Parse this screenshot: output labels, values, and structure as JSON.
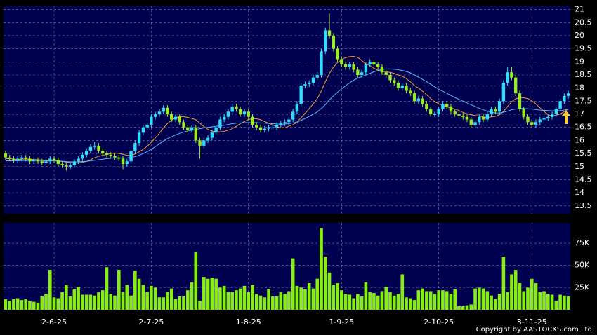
{
  "chart_data": [
    {
      "type": "candlestick",
      "ylim": [
        13.2,
        21.15
      ],
      "yticks": [
        13.5,
        14,
        14.5,
        15,
        15.5,
        16,
        16.5,
        17,
        17.5,
        18,
        18.5,
        19,
        19.5,
        20,
        20.5,
        21
      ],
      "up_color": "#33ddff",
      "down_color": "#99ee22",
      "grid": true,
      "open": [
        15.5,
        15.35,
        15.3,
        15.25,
        15.3,
        15.35,
        15.3,
        15.2,
        15.25,
        15.2,
        15.15,
        15.2,
        15.3,
        15.25,
        15.1,
        15.05,
        15.0,
        15.05,
        15.2,
        15.3,
        15.45,
        15.6,
        15.75,
        15.8,
        15.6,
        15.5,
        15.45,
        15.4,
        15.35,
        15.3,
        15.1,
        15.2,
        15.6,
        15.9,
        16.3,
        16.5,
        16.6,
        16.9,
        17.0,
        17.1,
        17.25,
        17.0,
        16.8,
        16.9,
        16.7,
        16.5,
        16.4,
        16.5,
        16.0,
        15.8,
        16.0,
        16.1,
        16.3,
        16.5,
        16.8,
        16.9,
        17.1,
        17.3,
        17.2,
        17.0,
        17.1,
        16.9,
        16.6,
        16.5,
        16.4,
        16.45,
        16.5,
        16.5,
        16.6,
        16.65,
        16.7,
        16.8,
        17.1,
        17.4,
        18.1,
        18.15,
        18.2,
        18.4,
        18.5,
        19.4,
        20.2,
        20.0,
        19.5,
        19.1,
        18.9,
        18.8,
        18.9,
        18.7,
        18.5,
        18.6,
        18.9,
        19.0,
        18.9,
        18.8,
        18.6,
        18.5,
        18.3,
        18.2,
        18.0,
        18.1,
        17.9,
        17.8,
        17.5,
        17.6,
        17.4,
        17.2,
        17.0,
        17.0,
        17.2,
        17.4,
        17.3,
        17.1,
        17.0,
        16.95,
        16.9,
        16.8,
        16.6,
        16.7,
        16.9,
        16.8,
        17.0,
        17.2,
        17.1,
        17.5,
        18.2,
        18.6,
        18.4,
        17.8,
        17.2,
        16.9,
        16.7,
        16.6,
        16.7,
        16.8,
        16.85,
        16.9,
        17.0,
        17.2,
        17.5,
        17.7
      ],
      "high": [
        15.6,
        15.45,
        15.4,
        15.4,
        15.45,
        15.45,
        15.4,
        15.35,
        15.35,
        15.3,
        15.3,
        15.4,
        15.4,
        15.35,
        15.2,
        15.15,
        15.15,
        15.3,
        15.4,
        15.55,
        15.7,
        15.85,
        15.95,
        15.9,
        15.7,
        15.6,
        15.55,
        15.5,
        15.45,
        15.4,
        15.3,
        15.7,
        16.0,
        16.4,
        16.6,
        16.7,
        17.0,
        17.1,
        17.2,
        17.35,
        17.35,
        17.1,
        17.0,
        17.0,
        16.8,
        16.6,
        16.6,
        16.6,
        16.1,
        16.1,
        16.2,
        16.4,
        16.6,
        16.9,
        17.0,
        17.2,
        17.4,
        17.4,
        17.3,
        17.2,
        17.2,
        17.0,
        16.7,
        16.6,
        16.55,
        16.6,
        16.6,
        16.7,
        16.75,
        16.8,
        16.9,
        17.2,
        17.5,
        18.2,
        18.25,
        18.3,
        18.5,
        18.6,
        19.5,
        20.3,
        20.85,
        20.1,
        19.6,
        19.2,
        19.0,
        19.0,
        19.0,
        18.8,
        18.7,
        19.0,
        19.1,
        19.1,
        19.0,
        18.9,
        18.7,
        18.6,
        18.4,
        18.3,
        18.2,
        18.2,
        18.0,
        17.9,
        17.7,
        17.7,
        17.5,
        17.3,
        17.1,
        17.3,
        17.5,
        17.5,
        17.4,
        17.2,
        17.1,
        17.05,
        17.0,
        16.9,
        16.8,
        17.0,
        17.0,
        17.1,
        17.3,
        17.3,
        17.6,
        18.3,
        18.8,
        18.8,
        18.5,
        17.9,
        17.3,
        17.0,
        16.8,
        16.8,
        16.9,
        16.95,
        17.0,
        17.1,
        17.3,
        17.6,
        17.8,
        17.9
      ],
      "low": [
        15.25,
        15.2,
        15.15,
        15.15,
        15.2,
        15.2,
        15.1,
        15.1,
        15.1,
        15.05,
        15.05,
        15.1,
        15.15,
        15.0,
        14.95,
        14.85,
        14.9,
        14.95,
        15.1,
        15.2,
        15.35,
        15.5,
        15.65,
        15.5,
        15.4,
        15.35,
        15.3,
        15.25,
        15.2,
        14.9,
        15.0,
        15.1,
        15.5,
        15.8,
        16.2,
        16.4,
        16.5,
        16.8,
        16.9,
        17.0,
        16.9,
        16.7,
        16.7,
        16.6,
        16.4,
        16.3,
        16.3,
        15.9,
        15.3,
        15.7,
        15.9,
        16.0,
        16.2,
        16.4,
        16.7,
        16.8,
        17.0,
        17.1,
        16.9,
        16.9,
        16.8,
        16.5,
        16.4,
        16.3,
        16.3,
        16.35,
        16.4,
        16.4,
        16.5,
        16.55,
        16.6,
        16.7,
        17.0,
        17.3,
        18.0,
        18.05,
        18.1,
        18.3,
        18.4,
        19.3,
        19.9,
        19.4,
        19.0,
        18.8,
        18.7,
        18.7,
        18.6,
        18.4,
        18.4,
        18.5,
        18.8,
        18.8,
        18.7,
        18.5,
        18.4,
        18.2,
        18.1,
        17.9,
        17.9,
        17.8,
        17.7,
        17.4,
        17.4,
        17.3,
        17.1,
        16.9,
        16.9,
        16.9,
        17.1,
        17.2,
        17.0,
        16.9,
        16.85,
        16.8,
        16.7,
        16.5,
        16.5,
        16.6,
        16.7,
        16.7,
        16.9,
        17.0,
        17.0,
        17.4,
        18.1,
        18.3,
        17.7,
        17.1,
        16.8,
        16.6,
        16.5,
        16.5,
        16.6,
        16.7,
        16.75,
        16.8,
        16.9,
        17.1,
        17.4,
        17.6
      ],
      "close": [
        15.35,
        15.3,
        15.25,
        15.3,
        15.35,
        15.3,
        15.2,
        15.25,
        15.2,
        15.15,
        15.2,
        15.3,
        15.25,
        15.1,
        15.05,
        15.0,
        15.05,
        15.2,
        15.3,
        15.45,
        15.6,
        15.75,
        15.8,
        15.6,
        15.5,
        15.45,
        15.4,
        15.35,
        15.3,
        15.1,
        15.2,
        15.6,
        15.9,
        16.3,
        16.5,
        16.6,
        16.9,
        17.0,
        17.1,
        17.25,
        17.0,
        16.8,
        16.9,
        16.7,
        16.5,
        16.4,
        16.5,
        16.0,
        15.8,
        16.0,
        16.1,
        16.3,
        16.5,
        16.8,
        16.9,
        17.1,
        17.3,
        17.2,
        17.0,
        17.1,
        16.9,
        16.6,
        16.5,
        16.4,
        16.45,
        16.5,
        16.5,
        16.6,
        16.65,
        16.7,
        16.8,
        17.1,
        17.4,
        18.1,
        18.15,
        18.2,
        18.4,
        18.5,
        19.4,
        20.2,
        20.0,
        19.5,
        19.1,
        18.9,
        18.8,
        18.9,
        18.7,
        18.5,
        18.6,
        18.9,
        19.0,
        18.9,
        18.8,
        18.6,
        18.5,
        18.3,
        18.2,
        18.0,
        18.1,
        17.9,
        17.8,
        17.5,
        17.6,
        17.4,
        17.2,
        17.0,
        17.0,
        17.2,
        17.4,
        17.3,
        17.1,
        17.0,
        16.95,
        16.9,
        16.8,
        16.6,
        16.7,
        16.9,
        16.8,
        17.0,
        17.2,
        17.1,
        17.5,
        18.2,
        18.6,
        18.4,
        17.8,
        17.2,
        16.9,
        16.7,
        16.6,
        16.7,
        16.8,
        16.85,
        16.9,
        17.0,
        17.2,
        17.5,
        17.7,
        17.8
      ],
      "lines": [
        {
          "color": "#ff9933",
          "values": [
            15.3,
            15.3,
            15.28,
            15.27,
            15.28,
            15.29,
            15.28,
            15.27,
            15.26,
            15.25,
            15.24,
            15.24,
            15.24,
            15.22,
            15.2,
            15.17,
            15.15,
            15.14,
            15.14,
            15.16,
            15.2,
            15.26,
            15.34,
            15.39,
            15.43,
            15.46,
            15.5,
            15.52,
            15.5,
            15.47,
            15.43,
            15.43,
            15.48,
            15.56,
            15.66,
            15.78,
            15.93,
            16.1,
            16.28,
            16.48,
            16.65,
            16.77,
            16.87,
            16.91,
            16.91,
            16.88,
            16.84,
            16.79,
            16.66,
            16.53,
            16.42,
            16.36,
            16.33,
            16.33,
            16.35,
            16.39,
            16.45,
            16.54,
            16.64,
            16.72,
            16.8,
            16.83,
            16.83,
            16.79,
            16.72,
            16.66,
            16.59,
            16.52,
            16.48,
            16.48,
            16.55,
            16.6,
            16.7,
            16.87,
            17.04,
            17.21,
            17.4,
            17.6,
            17.89,
            18.24,
            18.56,
            18.8,
            18.97,
            19.09,
            19.16,
            19.2,
            19.21,
            19.17,
            19.05,
            18.92,
            18.86,
            18.76,
            18.68,
            18.65,
            18.62,
            18.6,
            18.56,
            18.5,
            18.45,
            18.36,
            18.24,
            18.1,
            18.0,
            17.88,
            17.75,
            17.6,
            17.48,
            17.4,
            17.34,
            17.28,
            17.24,
            17.2,
            17.14,
            17.07,
            17.02,
            16.98,
            16.95,
            16.94,
            16.89,
            16.88,
            16.9,
            16.92,
            16.98,
            17.11,
            17.3,
            17.48,
            17.59,
            17.64,
            17.63,
            17.6,
            17.51,
            17.4,
            17.25,
            17.11,
            16.98,
            16.93,
            16.97,
            17.01,
            17.1,
            17.2
          ]
        },
        {
          "color": "#55bbff",
          "values": [
            15.22,
            15.22,
            15.22,
            15.22,
            15.23,
            15.23,
            15.23,
            15.23,
            15.23,
            15.23,
            15.22,
            15.22,
            15.22,
            15.21,
            15.2,
            15.19,
            15.18,
            15.18,
            15.18,
            15.19,
            15.2,
            15.22,
            15.24,
            15.26,
            15.28,
            15.3,
            15.32,
            15.33,
            15.33,
            15.32,
            15.33,
            15.35,
            15.38,
            15.43,
            15.5,
            15.57,
            15.66,
            15.76,
            15.87,
            15.98,
            16.07,
            16.14,
            16.21,
            16.27,
            16.32,
            16.36,
            16.39,
            16.42,
            16.45,
            16.48,
            16.5,
            16.52,
            16.54,
            16.56,
            16.58,
            16.61,
            16.64,
            16.66,
            16.67,
            16.68,
            16.68,
            16.68,
            16.68,
            16.67,
            16.66,
            16.65,
            16.64,
            16.63,
            16.62,
            16.63,
            16.64,
            16.67,
            16.7,
            16.77,
            16.84,
            16.92,
            17.0,
            17.09,
            17.22,
            17.37,
            17.55,
            17.7,
            17.84,
            17.97,
            18.09,
            18.2,
            18.3,
            18.38,
            18.44,
            18.5,
            18.56,
            18.62,
            18.67,
            18.71,
            18.73,
            18.73,
            18.72,
            18.7,
            18.67,
            18.63,
            18.58,
            18.5,
            18.42,
            18.33,
            18.24,
            18.15,
            18.05,
            17.96,
            17.88,
            17.8,
            17.72,
            17.64,
            17.57,
            17.5,
            17.43,
            17.36,
            17.3,
            17.23,
            17.17,
            17.12,
            17.08,
            17.05,
            17.05,
            17.08,
            17.12,
            17.17,
            17.2,
            17.22,
            17.22,
            17.21,
            17.2,
            17.18,
            17.16,
            17.15,
            17.14,
            17.13,
            17.13,
            17.14,
            17.16,
            17.2
          ]
        }
      ]
    },
    {
      "type": "bar",
      "color": "#88ee11",
      "grid": true,
      "ylim": [
        0,
        98000
      ],
      "yticks": [
        {
          "value": 25000,
          "label": "25K"
        },
        {
          "value": 50000,
          "label": "50K"
        },
        {
          "value": 75000,
          "label": "75K"
        }
      ],
      "categories": [
        null,
        null,
        null,
        null,
        null,
        null,
        null,
        null,
        null,
        null,
        null,
        null,
        "2-6-25",
        null,
        null,
        null,
        null,
        null,
        null,
        null,
        null,
        null,
        null,
        null,
        null,
        null,
        null,
        null,
        null,
        null,
        null,
        null,
        null,
        null,
        null,
        null,
        "2-7-25",
        null,
        null,
        null,
        null,
        null,
        null,
        null,
        null,
        null,
        null,
        null,
        null,
        null,
        null,
        null,
        null,
        null,
        null,
        null,
        null,
        null,
        null,
        null,
        "1-8-25",
        null,
        null,
        null,
        null,
        null,
        null,
        null,
        null,
        null,
        null,
        null,
        null,
        null,
        null,
        null,
        null,
        null,
        null,
        null,
        null,
        null,
        null,
        "1-9-25",
        null,
        null,
        null,
        null,
        null,
        null,
        null,
        null,
        null,
        null,
        null,
        null,
        null,
        null,
        null,
        null,
        null,
        null,
        null,
        null,
        null,
        null,
        null,
        "2-10-25",
        null,
        null,
        null,
        null,
        null,
        null,
        null,
        null,
        null,
        null,
        null,
        null,
        null,
        null,
        null,
        null,
        null,
        null,
        null,
        null,
        null,
        null,
        "3-11-25",
        null,
        null,
        null,
        null,
        null,
        null,
        null,
        null,
        null
      ],
      "values": [
        12000,
        10000,
        12000,
        13000,
        11000,
        12000,
        10000,
        9000,
        8000,
        15000,
        18000,
        45000,
        14000,
        13000,
        20000,
        28000,
        15000,
        23000,
        26000,
        17000,
        17000,
        17000,
        16000,
        20000,
        22000,
        48000,
        18000,
        16000,
        45000,
        20000,
        28000,
        16000,
        44000,
        35000,
        28000,
        20000,
        27000,
        25000,
        14000,
        14000,
        20000,
        24000,
        12000,
        15000,
        15000,
        22000,
        31000,
        65000,
        10000,
        37000,
        35000,
        36000,
        35000,
        25000,
        27000,
        20000,
        20000,
        22000,
        24000,
        27000,
        20000,
        28000,
        18000,
        16000,
        14000,
        23000,
        15000,
        15000,
        20000,
        18000,
        21000,
        58000,
        27000,
        25000,
        23000,
        30000,
        24000,
        35000,
        92000,
        60000,
        42000,
        28000,
        30000,
        22000,
        18000,
        17000,
        13000,
        18000,
        15000,
        31000,
        20000,
        19000,
        16000,
        21000,
        26000,
        20000,
        16000,
        18000,
        40000,
        14000,
        13000,
        11000,
        22000,
        24000,
        21000,
        21000,
        18000,
        22000,
        22000,
        21000,
        18000,
        23000,
        4000,
        4000,
        5000,
        6000,
        24000,
        25000,
        24000,
        21000,
        16000,
        12000,
        18000,
        60000,
        20000,
        40000,
        45000,
        30000,
        21000,
        25000,
        35000,
        30000,
        20000,
        21000,
        18000,
        17000,
        10000,
        17000,
        16000,
        15000
      ]
    }
  ],
  "footer": {
    "copyright": "Copyright by AASTOCKS.com Ltd."
  }
}
